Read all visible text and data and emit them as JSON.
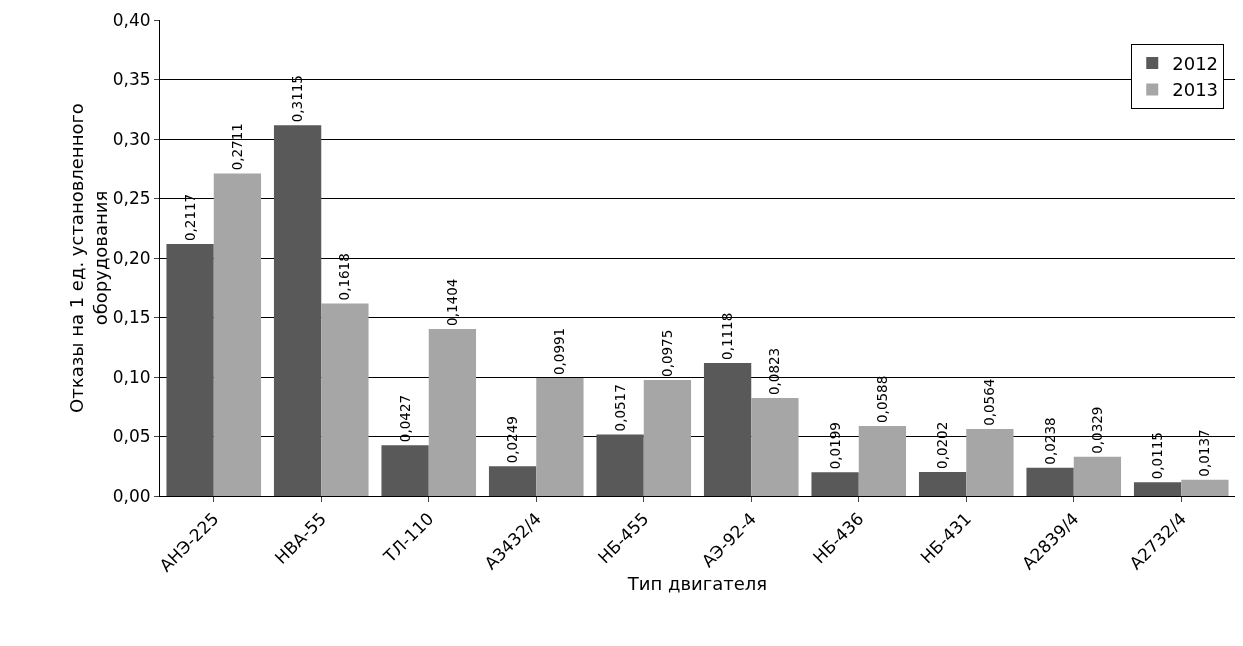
{
  "chart_data": {
    "type": "bar",
    "xlabel": "Тип двигателя",
    "ylabel": "Отказы на 1 ед. установленного\nоборудования",
    "categories": [
      "АНЭ-225",
      "НВА-55",
      "ТЛ-110",
      "А3432/4",
      "НБ-455",
      "АЭ-92-4",
      "НБ-436",
      "НБ-431",
      "А2839/4",
      "А2732/4"
    ],
    "series": [
      {
        "name": "2012",
        "color": "#595959",
        "values": [
          0.2117,
          0.3115,
          0.0427,
          0.0249,
          0.0517,
          0.1118,
          0.0199,
          0.0202,
          0.0238,
          0.0115
        ],
        "value_labels": [
          "0,2117",
          "0,3115",
          "0,0427",
          "0,0249",
          "0,0517",
          "0,1118",
          "0,0199",
          "0,0202",
          "0,0238",
          "0,0115"
        ]
      },
      {
        "name": "2013",
        "color": "#a6a6a6",
        "values": [
          0.2711,
          0.1618,
          0.1404,
          0.0991,
          0.0975,
          0.0823,
          0.0588,
          0.0564,
          0.0329,
          0.0137
        ],
        "value_labels": [
          "0,2711",
          "0,1618",
          "0,1404",
          "0,0991",
          "0,0975",
          "0,0823",
          "0,0588",
          "0,0564",
          "0,0329",
          "0,0137"
        ]
      }
    ],
    "ylim": [
      0,
      0.4
    ],
    "yticks": [
      {
        "value": 0,
        "label": "0,00"
      },
      {
        "value": 0.05,
        "label": "0,05"
      },
      {
        "value": 0.1,
        "label": "0,10"
      },
      {
        "value": 0.15,
        "label": "0,15"
      },
      {
        "value": 0.2,
        "label": "0,20"
      },
      {
        "value": 0.25,
        "label": "0,25"
      },
      {
        "value": 0.3,
        "label": "0,30"
      },
      {
        "value": 0.35,
        "label": "0,35"
      },
      {
        "value": 0.4,
        "label": "0,40"
      }
    ],
    "grid": "y",
    "legend": "top right"
  }
}
